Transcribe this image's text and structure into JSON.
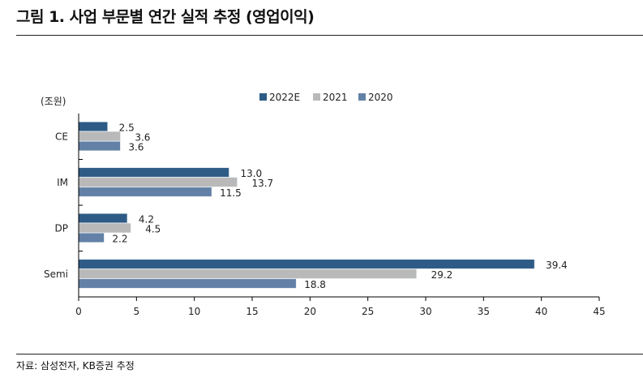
{
  "title": "그림 1. 사업 부문별 연간 실적 추정 (영업이익)",
  "source": "자료: 삼성전자, KB증권 추정",
  "chart_data": {
    "type": "bar",
    "orientation": "horizontal",
    "unit_label": "(조원)",
    "categories": [
      "CE",
      "IM",
      "DP",
      "Semi"
    ],
    "series": [
      {
        "name": "2022E",
        "color": "#2e5b86",
        "values": [
          2.5,
          13.0,
          4.2,
          39.4
        ],
        "labels": [
          "2.5",
          "13.0",
          "4.2",
          "39.4"
        ]
      },
      {
        "name": "2021",
        "color": "#b9b9b9",
        "values": [
          3.6,
          13.7,
          4.5,
          29.2
        ],
        "labels": [
          "3.6",
          "13.7",
          "4.5",
          "29.2"
        ]
      },
      {
        "name": "2020",
        "color": "#6381a6",
        "values": [
          3.6,
          11.5,
          2.2,
          18.8
        ],
        "labels": [
          "3.6",
          "11.5",
          "2.2",
          "18.8"
        ]
      }
    ],
    "xlim": [
      0,
      45
    ],
    "xticks": [
      0,
      5,
      10,
      15,
      20,
      25,
      30,
      35,
      40,
      45
    ],
    "grid": false,
    "legend": "top"
  }
}
